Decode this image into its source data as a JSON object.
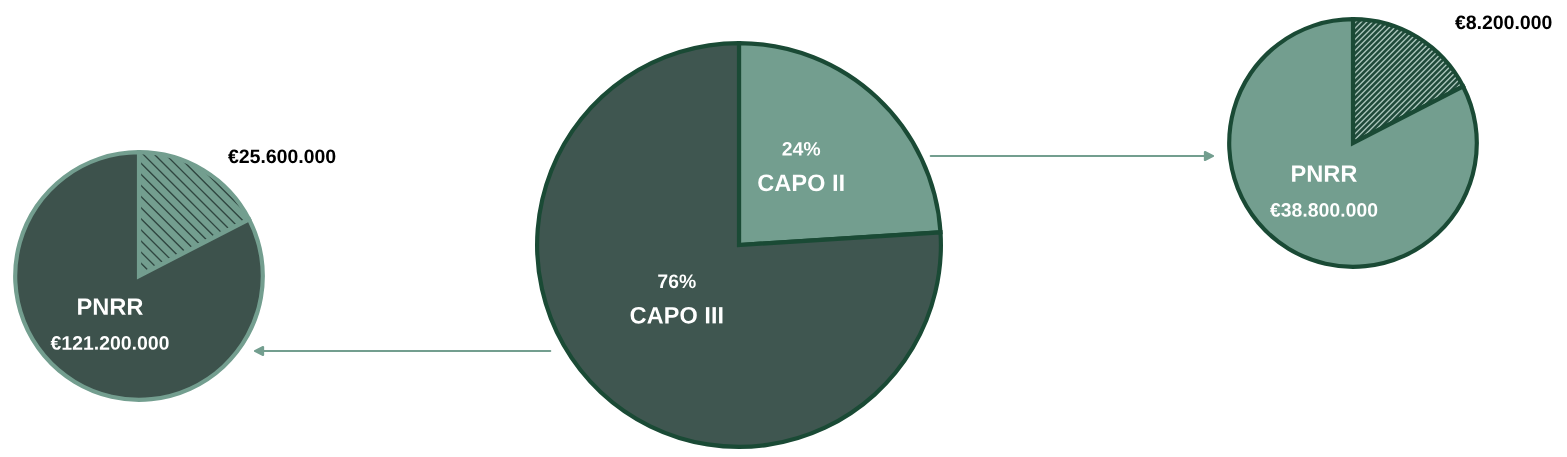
{
  "chart_data": [
    {
      "type": "pie",
      "categories": [
        null,
        "PNRR"
      ],
      "values": [
        25600000,
        121200000
      ],
      "value_labels": [
        "€25.600.000",
        "€121.200.000"
      ],
      "colors": [
        "#739e8f",
        "#3d524c"
      ]
    },
    {
      "type": "pie",
      "categories": [
        null,
        "PNRR"
      ],
      "values": [
        8200000,
        38800000
      ],
      "value_labels": [
        "€8.200.000",
        "€38.800.000"
      ],
      "colors": [
        "#1f4a3a",
        "#739e8f"
      ]
    },
    {
      "type": "pie",
      "categories": [
        "CAPO II",
        "CAPO III"
      ],
      "values": [
        24,
        76
      ],
      "value_labels": [
        "24%",
        "76%"
      ],
      "colors": [
        "#739e8f",
        "#3f5650"
      ]
    }
  ]
}
